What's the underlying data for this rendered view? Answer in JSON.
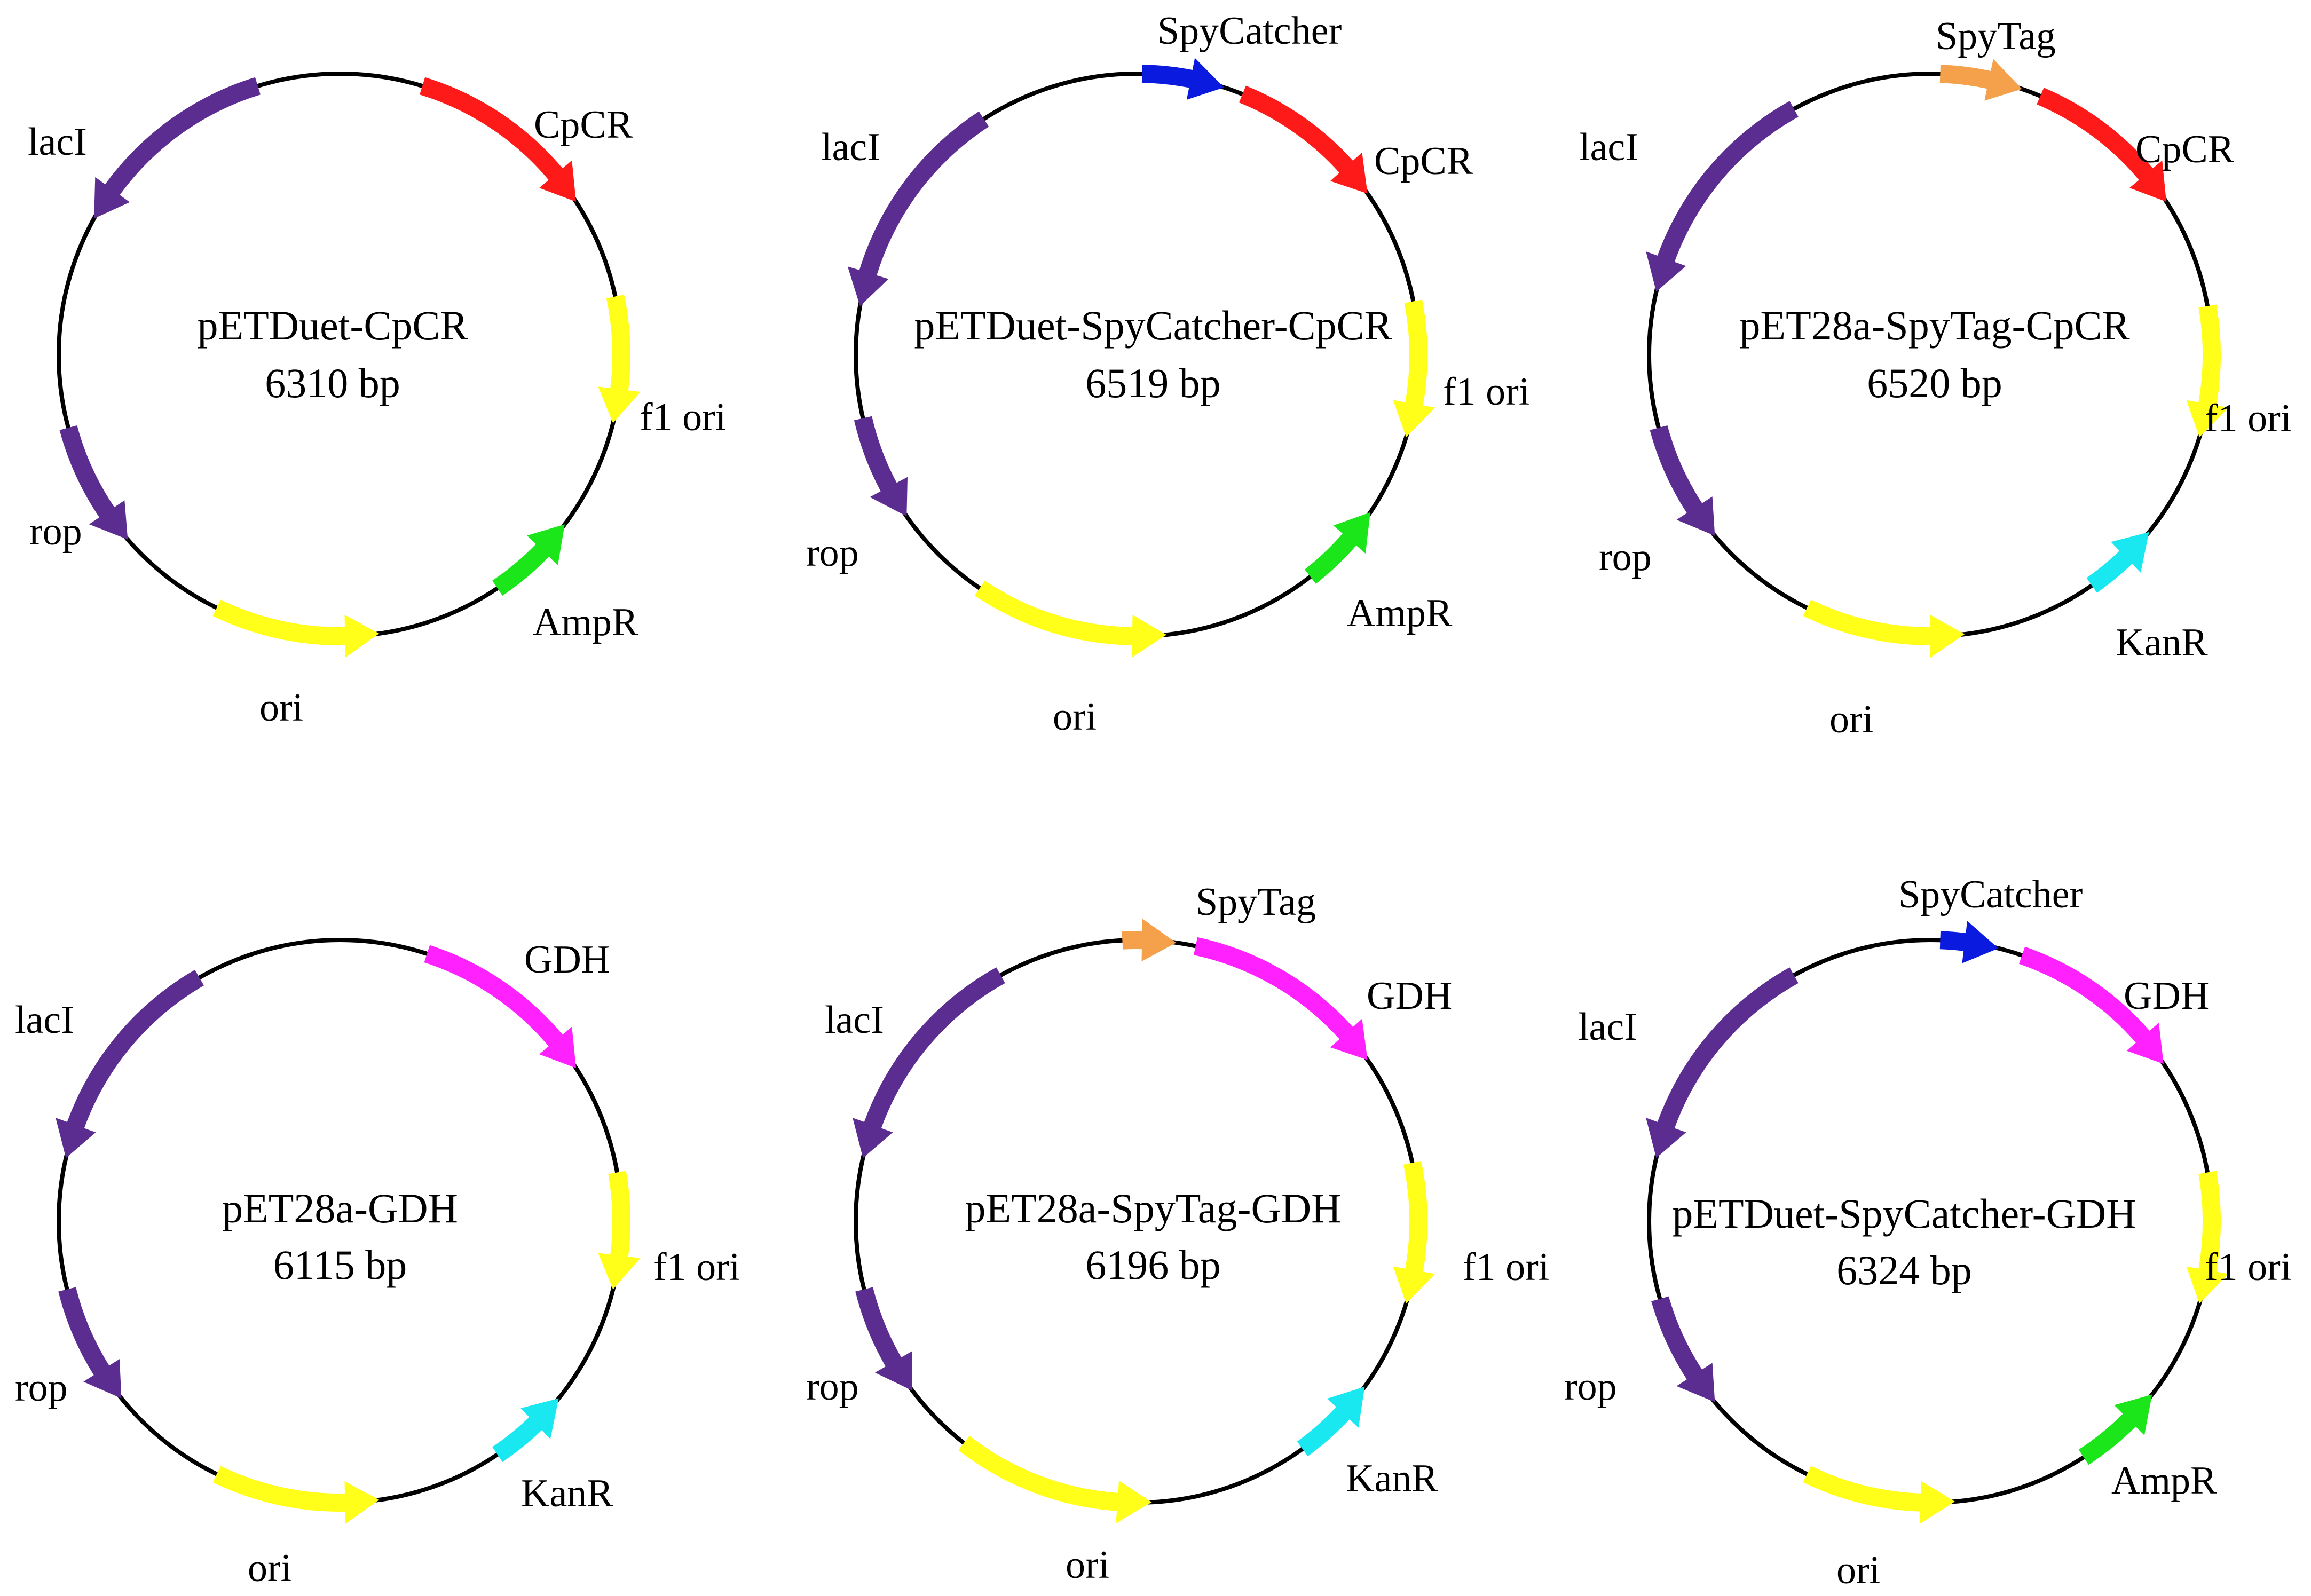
{
  "colors": {
    "lacI": "#5c2d91",
    "rop": "#5c2d91",
    "CpCR": "#ff1a1a",
    "GDH": "#ff22ff",
    "f1 ori": "#ffff1a",
    "ori": "#ffff1a",
    "AmpR": "#1ae61a",
    "KanR": "#1ae8f0",
    "SpyCatcher": "#0a1adf",
    "SpyTag": "#f5a04a"
  },
  "plasmids": [
    {
      "name": "pETDuet-CpCR",
      "size": "6310 bp",
      "features": [
        {
          "label": "CpCR",
          "color_key": "CpCR",
          "direction": "cw"
        },
        {
          "label": "f1 ori",
          "color_key": "f1 ori",
          "direction": "cw"
        },
        {
          "label": "AmpR",
          "color_key": "AmpR",
          "direction": "ccw"
        },
        {
          "label": "ori",
          "color_key": "ori",
          "direction": "ccw"
        },
        {
          "label": "rop",
          "color_key": "rop",
          "direction": "ccw"
        },
        {
          "label": "lacI",
          "color_key": "lacI",
          "direction": "ccw"
        }
      ]
    },
    {
      "name": "pETDuet-SpyCatcher-CpCR",
      "size": "6519 bp",
      "features": [
        {
          "label": "SpyCatcher",
          "color_key": "SpyCatcher",
          "direction": "cw"
        },
        {
          "label": "CpCR",
          "color_key": "CpCR",
          "direction": "cw"
        },
        {
          "label": "f1 ori",
          "color_key": "f1 ori",
          "direction": "cw"
        },
        {
          "label": "AmpR",
          "color_key": "AmpR",
          "direction": "ccw"
        },
        {
          "label": "ori",
          "color_key": "ori",
          "direction": "ccw"
        },
        {
          "label": "rop",
          "color_key": "rop",
          "direction": "ccw"
        },
        {
          "label": "lacI",
          "color_key": "lacI",
          "direction": "ccw"
        }
      ]
    },
    {
      "name": "pET28a-SpyTag-CpCR",
      "size": "6520 bp",
      "features": [
        {
          "label": "SpyTag",
          "color_key": "SpyTag",
          "direction": "cw"
        },
        {
          "label": "CpCR",
          "color_key": "CpCR",
          "direction": "cw"
        },
        {
          "label": "f1 ori",
          "color_key": "f1 ori",
          "direction": "cw"
        },
        {
          "label": "KanR",
          "color_key": "KanR",
          "direction": "ccw"
        },
        {
          "label": "ori",
          "color_key": "ori",
          "direction": "ccw"
        },
        {
          "label": "rop",
          "color_key": "rop",
          "direction": "ccw"
        },
        {
          "label": "lacI",
          "color_key": "lacI",
          "direction": "ccw"
        }
      ]
    },
    {
      "name": "pET28a-GDH",
      "size": "6115 bp",
      "features": [
        {
          "label": "GDH",
          "color_key": "GDH",
          "direction": "cw"
        },
        {
          "label": "f1 ori",
          "color_key": "f1 ori",
          "direction": "cw"
        },
        {
          "label": "KanR",
          "color_key": "KanR",
          "direction": "ccw"
        },
        {
          "label": "ori",
          "color_key": "ori",
          "direction": "ccw"
        },
        {
          "label": "rop",
          "color_key": "rop",
          "direction": "ccw"
        },
        {
          "label": "lacI",
          "color_key": "lacI",
          "direction": "ccw"
        }
      ]
    },
    {
      "name": "pET28a-SpyTag-GDH",
      "size": "6196 bp",
      "features": [
        {
          "label": "SpyTag",
          "color_key": "SpyTag",
          "direction": "cw"
        },
        {
          "label": "GDH",
          "color_key": "GDH",
          "direction": "cw"
        },
        {
          "label": "f1 ori",
          "color_key": "f1 ori",
          "direction": "cw"
        },
        {
          "label": "KanR",
          "color_key": "KanR",
          "direction": "ccw"
        },
        {
          "label": "ori",
          "color_key": "ori",
          "direction": "ccw"
        },
        {
          "label": "rop",
          "color_key": "rop",
          "direction": "ccw"
        },
        {
          "label": "lacI",
          "color_key": "lacI",
          "direction": "ccw"
        }
      ]
    },
    {
      "name": "pETDuet-SpyCatcher-GDH",
      "size": "6324 bp",
      "features": [
        {
          "label": "SpyCatcher",
          "color_key": "SpyCatcher",
          "direction": "cw"
        },
        {
          "label": "GDH",
          "color_key": "GDH",
          "direction": "cw"
        },
        {
          "label": "f1 ori",
          "color_key": "f1 ori",
          "direction": "cw"
        },
        {
          "label": "AmpR",
          "color_key": "AmpR",
          "direction": "ccw"
        },
        {
          "label": "ori",
          "color_key": "ori",
          "direction": "ccw"
        },
        {
          "label": "rop",
          "color_key": "rop",
          "direction": "ccw"
        },
        {
          "label": "lacI",
          "color_key": "lacI",
          "direction": "ccw"
        }
      ]
    }
  ]
}
